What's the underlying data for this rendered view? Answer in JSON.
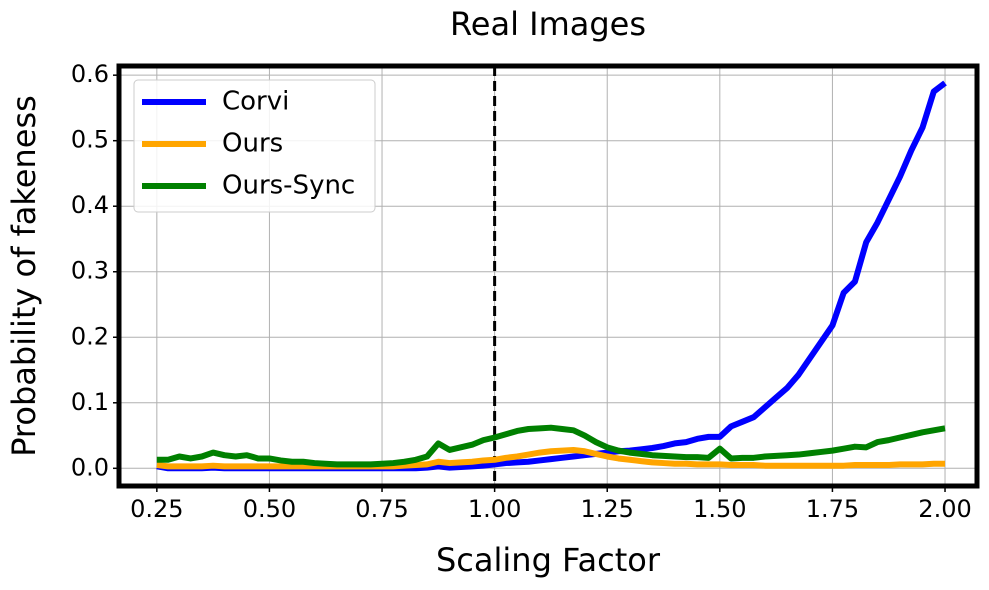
{
  "chart_data": {
    "type": "line",
    "title": "Real Images",
    "x_label": "Scaling Factor",
    "y_label": "Probability of fakeness",
    "x": [
      0.25,
      0.275,
      0.3,
      0.325,
      0.35,
      0.375,
      0.4,
      0.425,
      0.45,
      0.475,
      0.5,
      0.525,
      0.55,
      0.575,
      0.6,
      0.625,
      0.65,
      0.675,
      0.7,
      0.725,
      0.75,
      0.775,
      0.8,
      0.825,
      0.85,
      0.875,
      0.9,
      0.925,
      0.95,
      0.975,
      1.0,
      1.025,
      1.05,
      1.075,
      1.1,
      1.125,
      1.15,
      1.175,
      1.2,
      1.225,
      1.25,
      1.275,
      1.3,
      1.325,
      1.35,
      1.375,
      1.4,
      1.425,
      1.45,
      1.475,
      1.5,
      1.525,
      1.55,
      1.575,
      1.6,
      1.625,
      1.65,
      1.675,
      1.7,
      1.725,
      1.75,
      1.775,
      1.8,
      1.825,
      1.85,
      1.875,
      1.9,
      1.925,
      1.95,
      1.975,
      2.0
    ],
    "series": [
      {
        "name": "Corvi",
        "color": "#0000ff",
        "values": [
          0.003,
          0,
          0,
          0,
          0,
          0.001,
          0,
          0,
          0,
          0,
          0,
          0,
          0,
          0,
          0,
          0,
          0,
          0,
          0,
          0,
          0,
          0,
          0,
          0,
          0.001,
          0.003,
          0.001,
          0.002,
          0.003,
          0.004,
          0.006,
          0.008,
          0.009,
          0.01,
          0.012,
          0.014,
          0.016,
          0.018,
          0.02,
          0.022,
          0.024,
          0.026,
          0.027,
          0.029,
          0.031,
          0.034,
          0.038,
          0.04,
          0.045,
          0.048,
          0.048,
          0.064,
          0.071,
          0.078,
          0.093,
          0.108,
          0.123,
          0.143,
          0.168,
          0.193,
          0.218,
          0.268,
          0.285,
          0.345,
          0.375,
          0.41,
          0.445,
          0.485,
          0.52,
          0.575,
          0.588
        ]
      },
      {
        "name": "Ours",
        "color": "#ffa500",
        "values": [
          0.005,
          0.003,
          0.003,
          0.003,
          0.003,
          0.004,
          0.003,
          0.003,
          0.003,
          0.003,
          0.003,
          0.003,
          0.003,
          0.003,
          0.003,
          0.003,
          0.003,
          0.003,
          0.003,
          0.003,
          0.003,
          0.003,
          0.004,
          0.005,
          0.006,
          0.01,
          0.008,
          0.009,
          0.01,
          0.012,
          0.013,
          0.016,
          0.018,
          0.021,
          0.024,
          0.026,
          0.027,
          0.028,
          0.026,
          0.022,
          0.018,
          0.015,
          0.013,
          0.011,
          0.009,
          0.008,
          0.007,
          0.007,
          0.006,
          0.006,
          0.006,
          0.005,
          0.005,
          0.005,
          0.004,
          0.004,
          0.004,
          0.004,
          0.004,
          0.004,
          0.004,
          0.004,
          0.005,
          0.005,
          0.005,
          0.005,
          0.006,
          0.006,
          0.006,
          0.007,
          0.007
        ]
      },
      {
        "name": "Ours-Sync",
        "color": "#008000",
        "values": [
          0.013,
          0.013,
          0.018,
          0.015,
          0.018,
          0.024,
          0.02,
          0.018,
          0.02,
          0.015,
          0.015,
          0.012,
          0.01,
          0.01,
          0.008,
          0.007,
          0.006,
          0.006,
          0.006,
          0.006,
          0.007,
          0.008,
          0.01,
          0.013,
          0.018,
          0.038,
          0.028,
          0.032,
          0.036,
          0.043,
          0.047,
          0.052,
          0.057,
          0.06,
          0.061,
          0.062,
          0.06,
          0.058,
          0.05,
          0.04,
          0.032,
          0.027,
          0.024,
          0.022,
          0.02,
          0.019,
          0.018,
          0.017,
          0.017,
          0.016,
          0.03,
          0.015,
          0.016,
          0.016,
          0.018,
          0.019,
          0.02,
          0.021,
          0.023,
          0.025,
          0.027,
          0.03,
          0.033,
          0.032,
          0.04,
          0.043,
          0.047,
          0.051,
          0.055,
          0.058,
          0.061
        ]
      }
    ],
    "vline": 1.0,
    "xlim": [
      0.166,
      2.071
    ],
    "ylim": [
      -0.027,
      0.614
    ],
    "xticks": [
      0.25,
      {
        "value": 0.5,
        "label": "0.50"
      },
      0.75,
      {
        "value": 1.0,
        "label": "1.00"
      },
      1.25,
      {
        "value": 1.5,
        "label": "1.50"
      },
      1.75,
      {
        "value": 2.0,
        "label": "2.00"
      }
    ],
    "yticks": [
      {
        "value": 0,
        "label": "0.0"
      },
      0.1,
      0.2,
      0.3,
      0.4,
      0.5,
      0.6
    ],
    "grid": true,
    "legend": "upper left"
  }
}
